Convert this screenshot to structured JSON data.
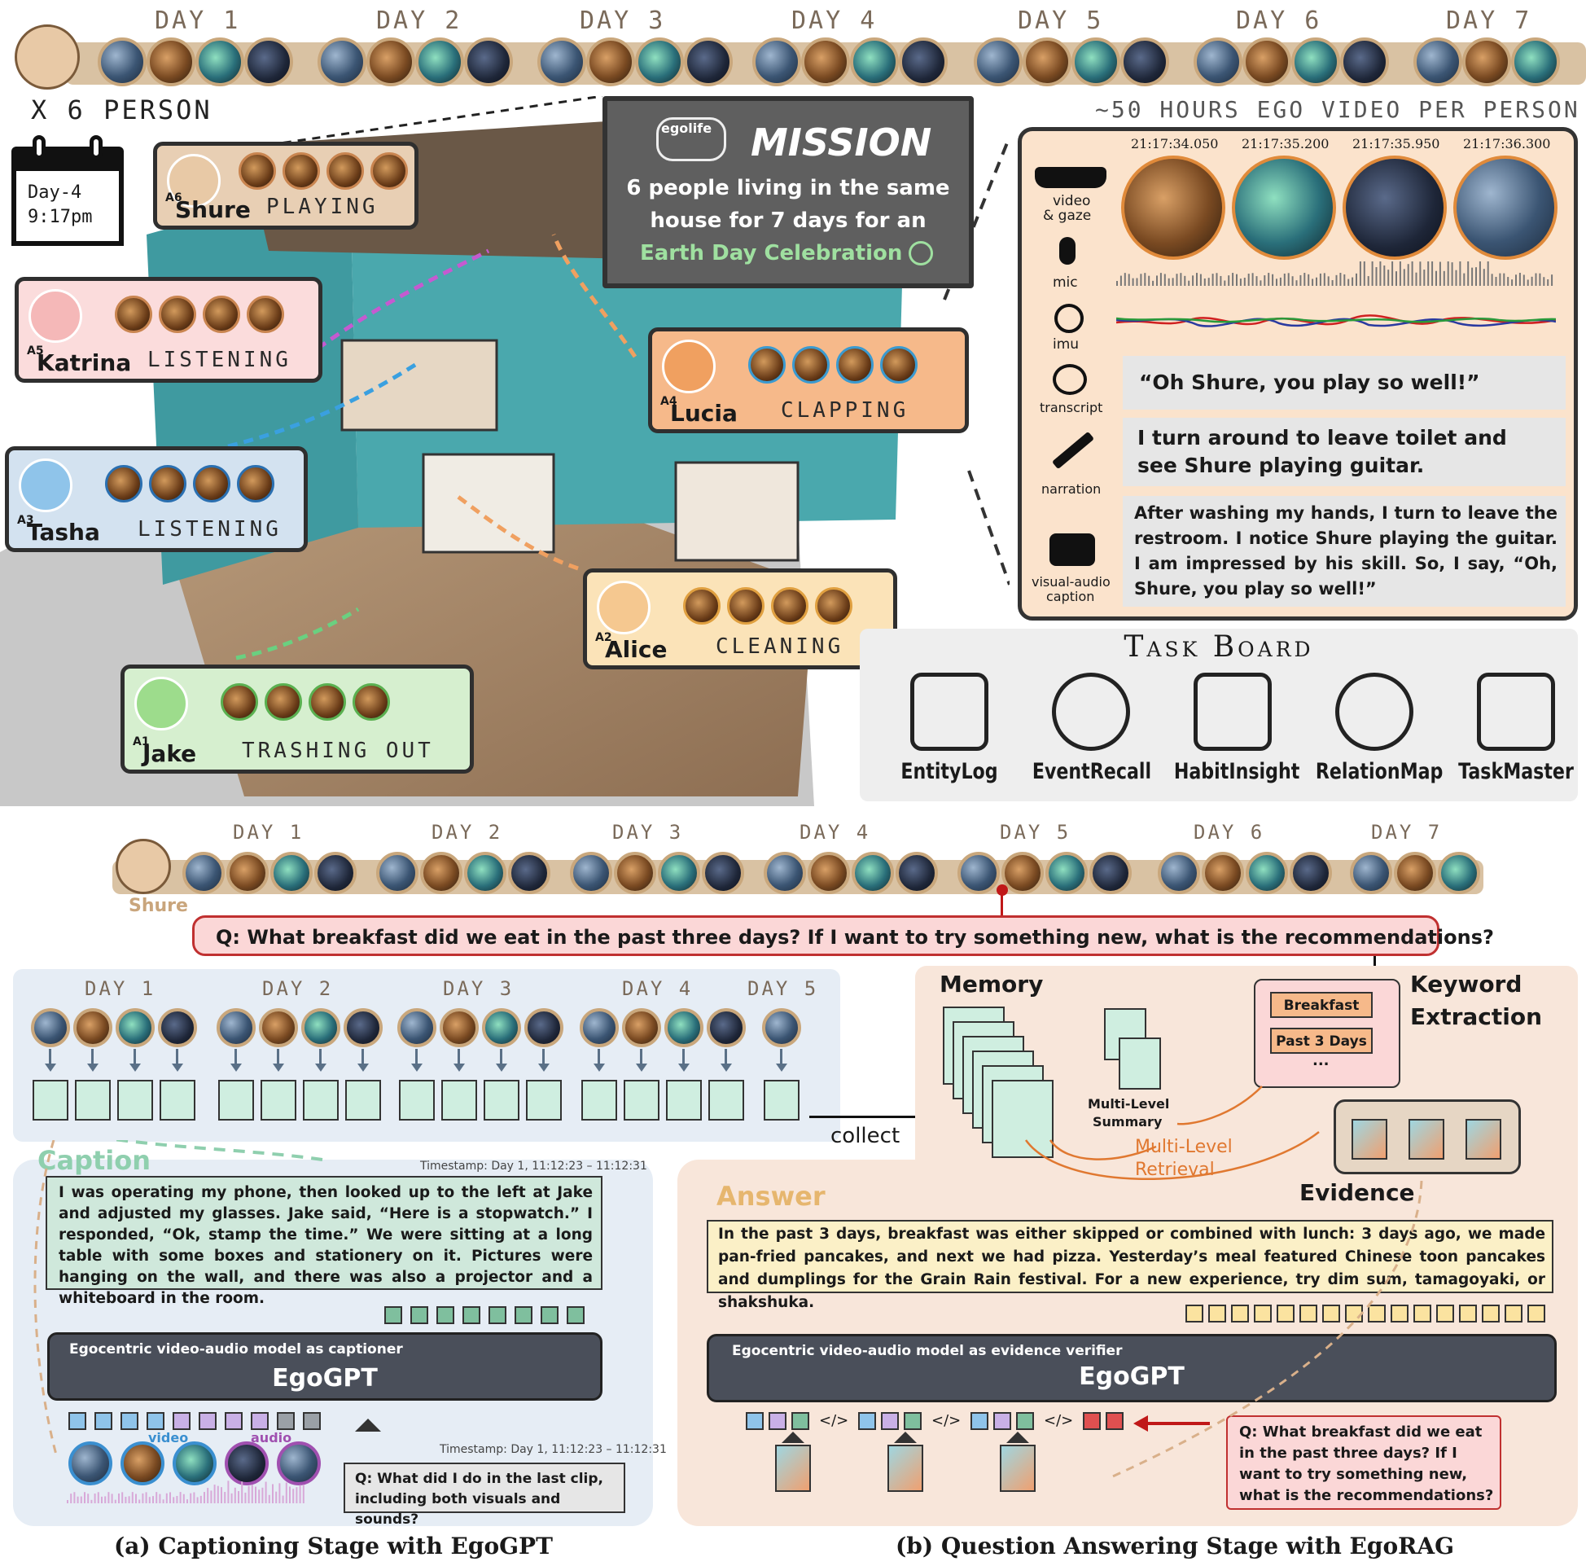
{
  "top_timeline": {
    "days": [
      "DAY 1",
      "DAY 2",
      "DAY 3",
      "DAY 4",
      "DAY 5",
      "DAY 6",
      "DAY 7"
    ],
    "person_count": "X 6 PERSON",
    "hours_label": "~50 HOURS EGO VIDEO PER PERSON"
  },
  "calendar": {
    "day": "Day-4",
    "time": "9:17pm"
  },
  "mission": {
    "brand": "egolife",
    "title": "MISSION",
    "line1": "6 people living in the same",
    "line2": "house for 7 days for an",
    "line3": "Earth Day Celebration"
  },
  "people": [
    {
      "id": "A6",
      "name": "Shure",
      "activity": "PLAYING"
    },
    {
      "id": "A5",
      "name": "Katrina",
      "activity": "LISTENING"
    },
    {
      "id": "A4",
      "name": "Lucia",
      "activity": "CLAPPING"
    },
    {
      "id": "A3",
      "name": "Tasha",
      "activity": "LISTENING"
    },
    {
      "id": "A2",
      "name": "Alice",
      "activity": "CLEANING"
    },
    {
      "id": "A1",
      "name": "Jake",
      "activity": "TRASHING OUT"
    }
  ],
  "sensors": {
    "timestamps": [
      "21:17:34.050",
      "21:17:35.200",
      "21:17:35.950",
      "21:17:36.300"
    ],
    "video_label": "video",
    "gaze_label": "& gaze",
    "mic_label": "mic",
    "imu_label": "imu",
    "transcript_label": "transcript",
    "transcript_text": "“Oh Shure, you play so well!”",
    "narration_label": "narration",
    "narration_text": "I turn around to leave toilet and see Shure playing guitar.",
    "caption_label_1": "visual-audio",
    "caption_label_2": "caption",
    "caption_text": "After washing my hands, I turn to leave the restroom. I notice Shure playing the guitar. I am impressed by his skill. So, I say, “Oh, Shure, you play so well!”"
  },
  "task_board": {
    "title": "Task Board",
    "tasks": [
      "EntityLog",
      "EventRecall",
      "HabitInsight",
      "RelationMap",
      "TaskMaster"
    ]
  },
  "bottom_timeline": {
    "days": [
      "DAY 1",
      "DAY 2",
      "DAY 3",
      "DAY 4",
      "DAY 5",
      "DAY 6",
      "DAY 7"
    ],
    "person": "Shure",
    "question": "Q: What breakfast did we eat in the past three days? If I want to try something new, what is the recommendations?"
  },
  "captioning": {
    "days": [
      "DAY 1",
      "DAY 2",
      "DAY 3",
      "DAY 4",
      "DAY 5"
    ],
    "collect": "collect",
    "caption_title": "Caption",
    "timestamp": "Timestamp: Day 1, 11:12:23 – 11:12:31",
    "caption_text": "I was operating my phone, then looked up to the left at Jake and adjusted my glasses. Jake said, “Here is a stopwatch.” I responded, “Ok, stamp the time.” We were sitting at a long table with some boxes and stationery on it. Pictures were hanging on the wall, and there was also a projector and a whiteboard in the room.",
    "model_subtitle": "Egocentric video-audio model as captioner",
    "model_name": "EgoGPT",
    "video_label": "video",
    "audio_label": "audio",
    "timestamp2": "Timestamp: Day 1, 11:12:23 – 11:12:31",
    "question": "Q: What did I do in the last clip, including both visuals and sounds?",
    "stage_title": "(a) Captioning Stage with EgoGPT"
  },
  "qa": {
    "memory_title": "Memory",
    "multi_level_summary_1": "Multi-Level",
    "multi_level_summary_2": "Summary",
    "keyword_title_1": "Keyword",
    "keyword_title_2": "Extraction",
    "keywords": [
      "Breakfast",
      "Past 3 Days",
      "..."
    ],
    "retrieval_1": "Multi-Level",
    "retrieval_2": "Retrieval",
    "evidence_title": "Evidence",
    "answer_title": "Answer",
    "answer_text": "In the past 3 days, breakfast was either skipped or combined with lunch: 3 days ago, we made pan-fried pancakes, and next we had pizza. Yesterday’s meal featured Chinese toon pancakes and dumplings for the Grain Rain festival. For a new experience, try dim sum, tamagoyaki, or shakshuka.",
    "model_subtitle": "Egocentric video-audio model as evidence verifier",
    "model_name": "EgoGPT",
    "code_tag": "</>",
    "question": "Q: What breakfast did we eat in the past three days? If I want to try something new, what is the recommendations?",
    "stage_title": "(b) Question Answering Stage with EgoRAG"
  },
  "colors": {
    "tan": "#d9c2a3",
    "mission_bg": "#5f5f5f",
    "sensor_bg": "#fbe3cc",
    "taskboard_bg": "#eeeeee",
    "cap_bg": "#e6edf5",
    "qa_bg": "#f8e6da",
    "caption_box": "#cfe8db",
    "answer_box": "#fbf0c7",
    "question_box": "#fbd7d7",
    "egogpt": "#4a4f5a"
  }
}
